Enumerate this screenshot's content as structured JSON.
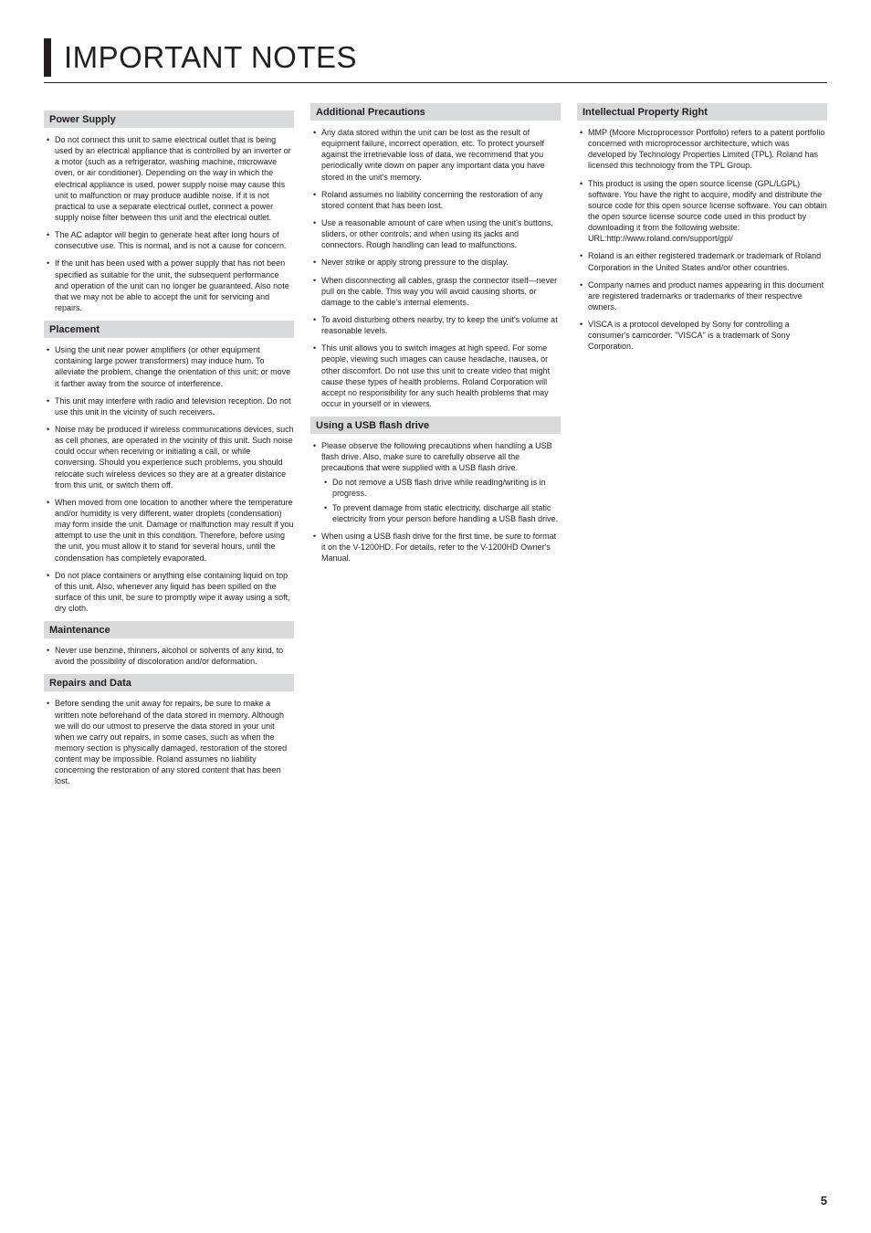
{
  "page_title": "IMPORTANT NOTES",
  "page_number": "5",
  "columns": [
    {
      "sections": [
        {
          "heading": "Power Supply",
          "items": [
            {
              "text": "Do not connect this unit to same electrical outlet that is being used by an electrical appliance that is controlled by an inverter or a motor (such as a refrigerator, washing machine, microwave oven, or air conditioner). Depending on the way in which the electrical appliance is used, power supply noise may cause this unit to malfunction or may produce audible noise. If it is not practical to use a separate electrical outlet, connect a power supply noise filter between this unit and the electrical outlet."
            },
            {
              "text": "The AC adaptor will begin to generate heat after long hours of consecutive use. This is normal, and is not a cause for concern."
            },
            {
              "text": "If the unit has been used with a power supply that has not been specified as suitable for the unit, the subsequent performance and operation of the unit can no longer be guaranteed. Also note that we may not be able to accept the unit for servicing and repairs."
            }
          ]
        },
        {
          "heading": "Placement",
          "items": [
            {
              "text": "Using the unit near power amplifiers (or other equipment containing large power transformers) may induce hum. To alleviate the problem, change the orientation of this unit; or move it farther away from the source of interference."
            },
            {
              "text": "This unit may interfere with radio and television reception. Do not use this unit in the vicinity of such receivers."
            },
            {
              "text": "Noise may be produced if wireless communications devices, such as cell phones, are operated in the vicinity of this unit. Such noise could occur when receiving or initiating a call, or while conversing. Should you experience such problems, you should relocate such wireless devices so they are at a greater distance from this unit, or switch them off."
            },
            {
              "text": "When moved from one location to another where the temperature and/or humidity is very different, water droplets (condensation) may form inside the unit. Damage or malfunction may result if you attempt to use the unit in this condition. Therefore, before using the unit, you must allow it to stand for several hours, until the condensation has completely evaporated."
            },
            {
              "text": "Do not place containers or anything else containing liquid on top of this unit. Also, whenever any liquid has been spilled on the surface of this unit, be sure to promptly wipe it away using a soft, dry cloth."
            }
          ]
        },
        {
          "heading": "Maintenance",
          "items": [
            {
              "text": "Never use benzine, thinners, alcohol or solvents of any kind, to avoid the possibility of discoloration and/or deformation."
            }
          ]
        },
        {
          "heading": "Repairs and Data",
          "items": [
            {
              "text": "Before sending the unit away for repairs, be sure to make a written note beforehand of the data stored in memory. Although we will do our utmost to preserve the data stored in your unit when we carry out repairs, in some cases, such as when the memory section is physically damaged, restoration of the stored content may be impossible. Roland assumes no liability concerning the restoration of any stored content that has been lost."
            }
          ]
        }
      ]
    },
    {
      "sections": [
        {
          "heading": "Additional Precautions",
          "items": [
            {
              "text": "Any data stored within the unit can be lost as the result of equipment failure, incorrect operation, etc. To protect yourself against the irretrievable loss of data, we recommend that you periodically write down on paper any important data you have stored in the unit's memory."
            },
            {
              "text": "Roland assumes no liability concerning the restoration of any stored content that has been lost."
            },
            {
              "text": "Use a reasonable amount of care when using the unit's buttons, sliders, or other controls; and when using its jacks and connectors. Rough handling can lead to malfunctions."
            },
            {
              "text": "Never strike or apply strong pressure to the display."
            },
            {
              "text": "When disconnecting all cables, grasp the connector itself—never pull on the cable. This way you will avoid causing shorts, or damage to the cable's internal elements."
            },
            {
              "text": "To avoid disturbing others nearby, try to keep the unit's volume at reasonable levels."
            },
            {
              "text": "This unit allows you to switch images at high speed. For some people, viewing such images can cause headache, nausea, or other discomfort. Do not use this unit to create video that might cause these types of health problems. Roland Corporation will accept no responsibility for any such health problems that may occur in yourself or in viewers."
            }
          ]
        },
        {
          "heading": "Using a USB flash drive",
          "items": [
            {
              "text": "Please observe the following precautions when handling a USB flash drive. Also, make sure to carefully observe all the precautions that were supplied with a USB flash drive.",
              "sub": [
                "Do not remove a USB flash drive while reading/writing is in progress.",
                "To prevent damage from static electricity, discharge all static electricity from your person before handling a USB flash drive."
              ]
            },
            {
              "text": "When using a USB flash drive for the first time, be sure to format it on the V-1200HD. For details, refer to the V-1200HD Owner's Manual."
            }
          ]
        }
      ]
    },
    {
      "sections": [
        {
          "heading": "Intellectual Property Right",
          "items": [
            {
              "text": "MMP (Moore Microprocessor Portfolio) refers to a patent portfolio concerned with microprocessor architecture, which was developed by Technology Properties Limited (TPL). Roland has licensed this technology from the TPL Group."
            },
            {
              "text": "This product is using the open source license (GPL/LGPL) software. You have the right to acquire, modify and distribute the source code for this open source license software. You can obtain the open source license source code used in this product by downloading it from the following website: URL:http://www.roland.com/support/gpl/"
            },
            {
              "text": "Roland is an either registered trademark or trademark of Roland Corporation in the United States and/or other countries."
            },
            {
              "text": "Company names and product names appearing in this document are registered trademarks or trademarks of their respective owners."
            },
            {
              "text": "VISCA is a protocol developed by Sony for controlling a consumer's camcorder. \"VISCA\" is a trademark of Sony Corporation."
            }
          ]
        }
      ]
    }
  ]
}
